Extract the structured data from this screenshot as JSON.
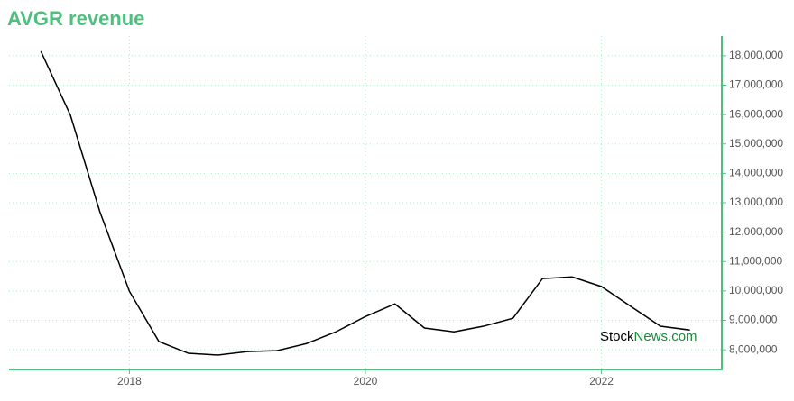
{
  "chart_data": {
    "type": "line",
    "title": "AVGR revenue",
    "x": [
      2017.25,
      2017.5,
      2017.75,
      2018,
      2018.25,
      2018.5,
      2018.75,
      2019,
      2019.25,
      2019.5,
      2019.75,
      2020,
      2020.25,
      2020.5,
      2020.75,
      2021,
      2021.25,
      2021.5,
      2021.75,
      2022,
      2022.25,
      2022.5,
      2022.75
    ],
    "series": [
      {
        "name": "AVGR revenue",
        "color": "#000000",
        "values": [
          18150000,
          15980000,
          12690000,
          9990000,
          8280000,
          7880000,
          7820000,
          7940000,
          7970000,
          8210000,
          8610000,
          9130000,
          9560000,
          8740000,
          8610000,
          8800000,
          9070000,
          10420000,
          10480000,
          10150000,
          9470000,
          8800000,
          8670000
        ]
      }
    ],
    "xlim": [
      2016.98,
      2023.02
    ],
    "xticks": [
      2018,
      2020,
      2022
    ],
    "ylim": [
      7330000,
      18670000
    ],
    "yticks": [
      {
        "value": 8000000,
        "label": "8,000,000"
      },
      {
        "value": 9000000,
        "label": "9,000,000"
      },
      {
        "value": 10000000,
        "label": "10,000,000"
      },
      {
        "value": 11000000,
        "label": "11,000,000"
      },
      {
        "value": 12000000,
        "label": "12,000,000"
      },
      {
        "value": 13000000,
        "label": "13,000,000"
      },
      {
        "value": 14000000,
        "label": "14,000,000"
      },
      {
        "value": 15000000,
        "label": "15,000,000"
      },
      {
        "value": 16000000,
        "label": "16,000,000"
      },
      {
        "value": 17000000,
        "label": "17,000,000"
      },
      {
        "value": 18000000,
        "label": "18,000,000"
      }
    ],
    "grid": true,
    "watermark": {
      "prefix": "Stock",
      "suffix": "News.com"
    }
  }
}
